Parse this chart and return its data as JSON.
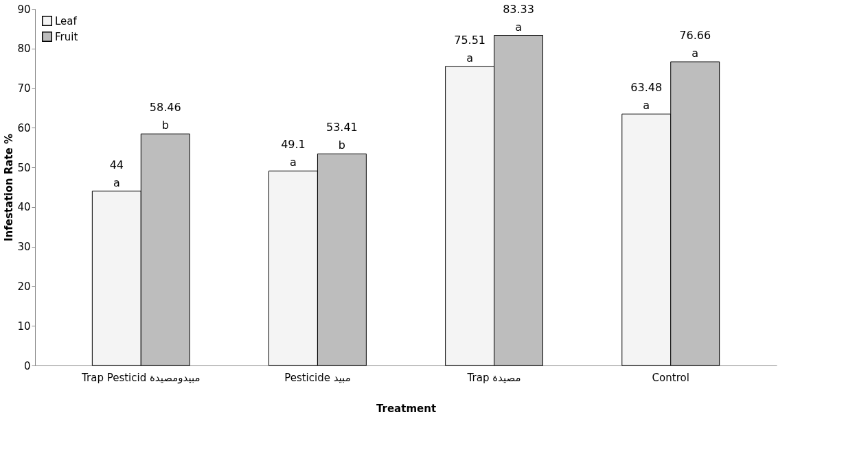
{
  "chart_data": {
    "type": "bar",
    "xlabel": "Treatment",
    "ylabel": "Infestation Rate %",
    "categories": [
      "Trap Pesticid مبيدومصيدة",
      "Pesticide مبيد",
      "Trap مصيدة",
      "Control"
    ],
    "series": [
      {
        "name": "Leaf",
        "color": "#f4f4f4",
        "values": [
          44,
          49.1,
          75.51,
          63.48
        ],
        "value_labels": [
          "44\na",
          "49.1\na",
          "75.51\na",
          "63.48\na"
        ]
      },
      {
        "name": "Fruit",
        "color": "#bdbdbd",
        "values": [
          58.46,
          53.41,
          83.33,
          76.66
        ],
        "value_labels": [
          "58.46\nb",
          "53.41\nb",
          "83.33\na",
          "76.66\na"
        ]
      }
    ],
    "ylim": [
      0,
      90
    ],
    "yticks": [
      0,
      10,
      20,
      30,
      40,
      50,
      60,
      70,
      80,
      90
    ],
    "grid": false,
    "legend": "top left"
  }
}
